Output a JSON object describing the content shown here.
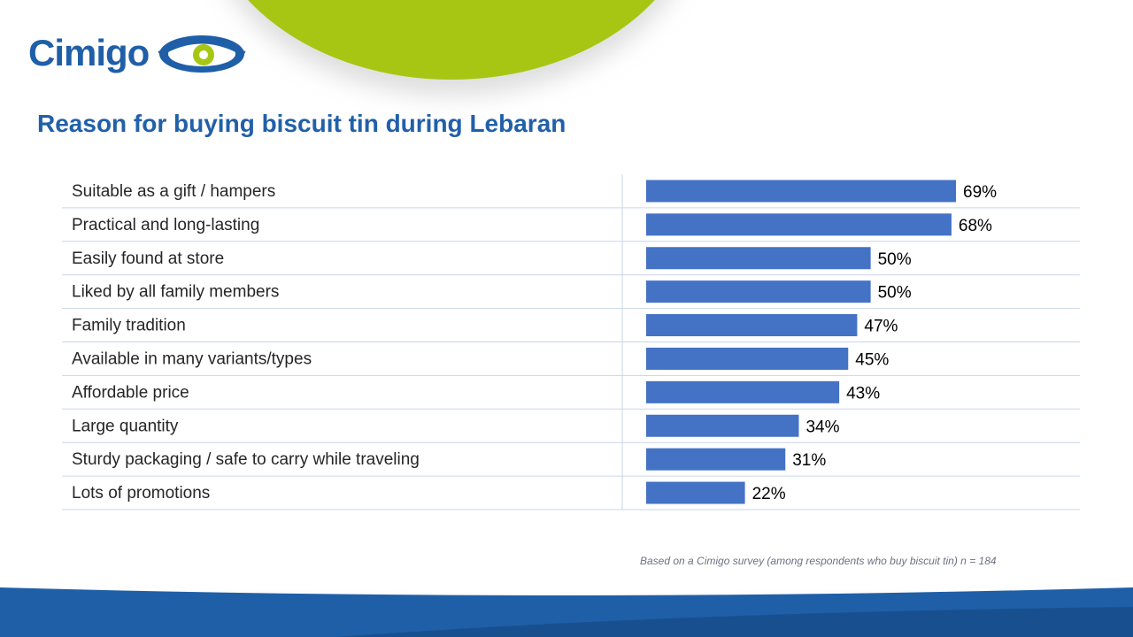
{
  "logo": {
    "text": "Cimigo"
  },
  "colors": {
    "brand_blue": "#1f5fa8",
    "accent_green": "#a7c613",
    "bar": "#4472c4",
    "band": "#1f5fa8"
  },
  "title": "Reason for buying biscuit tin during Lebaran",
  "footnote": "Based on a Cimigo survey (among respondents who buy biscuit tin) n = 184",
  "chart_data": {
    "type": "bar",
    "orientation": "horizontal",
    "title": "Reason for buying biscuit tin during Lebaran",
    "categories": [
      "Suitable as a gift / hampers",
      "Practical and long-lasting",
      "Easily found at store",
      "Liked by all family members",
      "Family tradition",
      "Available in many variants/types",
      "Affordable price",
      "Large quantity",
      "Sturdy packaging / safe to carry while traveling",
      "Lots of promotions"
    ],
    "values": [
      69,
      68,
      50,
      50,
      47,
      45,
      43,
      34,
      31,
      22
    ],
    "value_labels": [
      "69%",
      "68%",
      "50%",
      "50%",
      "47%",
      "45%",
      "43%",
      "34%",
      "31%",
      "22%"
    ],
    "unit": "%",
    "xlim": [
      0,
      100
    ],
    "grid": false,
    "legend": "none"
  }
}
